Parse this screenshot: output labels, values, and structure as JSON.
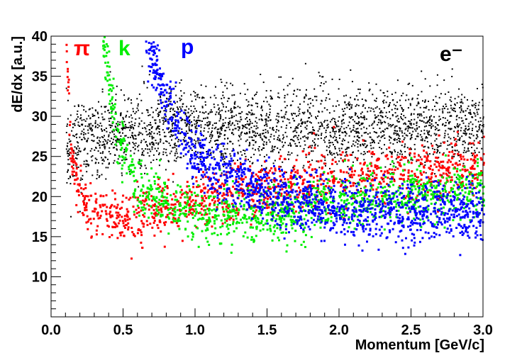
{
  "chart_data": {
    "type": "scatter",
    "title": "",
    "xlabel": "Momentum [GeV/c]",
    "ylabel": "dE/dx [a.u.]",
    "xlim": [
      0.0,
      3.0
    ],
    "ylim": [
      5,
      40
    ],
    "x_ticks": [
      "0.0",
      "0.5",
      "1.0",
      "1.5",
      "2.0",
      "2.5",
      "3.0"
    ],
    "y_ticks": [
      "10",
      "15",
      "20",
      "25",
      "30",
      "35",
      "40"
    ],
    "grid": false,
    "series": [
      {
        "name": "e⁻",
        "color": "#000000",
        "trend": [
          {
            "p": 0.1,
            "dedx": 26.5
          },
          {
            "p": 0.5,
            "dedx": 28.0
          },
          {
            "p": 1.0,
            "dedx": 28.5
          },
          {
            "p": 2.0,
            "dedx": 28.5
          },
          {
            "p": 3.0,
            "dedx": 28.5
          }
        ]
      },
      {
        "name": "π",
        "color": "#ff0000",
        "trend": [
          {
            "p": 0.1,
            "dedx": 40.0
          },
          {
            "p": 0.13,
            "dedx": 25.0
          },
          {
            "p": 0.25,
            "dedx": 18.0
          },
          {
            "p": 0.5,
            "dedx": 17.5
          },
          {
            "p": 1.0,
            "dedx": 19.5
          },
          {
            "p": 2.0,
            "dedx": 22.5
          },
          {
            "p": 3.0,
            "dedx": 24.0
          }
        ]
      },
      {
        "name": "k",
        "color": "#00ee00",
        "trend": [
          {
            "p": 0.35,
            "dedx": 40.0
          },
          {
            "p": 0.45,
            "dedx": 28.0
          },
          {
            "p": 0.6,
            "dedx": 21.0
          },
          {
            "p": 1.0,
            "dedx": 18.0
          },
          {
            "p": 1.5,
            "dedx": 17.5
          },
          {
            "p": 2.0,
            "dedx": 19.5
          },
          {
            "p": 3.0,
            "dedx": 21.0
          }
        ]
      },
      {
        "name": "p",
        "color": "#0000ff",
        "trend": [
          {
            "p": 0.65,
            "dedx": 40.0
          },
          {
            "p": 0.8,
            "dedx": 32.0
          },
          {
            "p": 1.0,
            "dedx": 25.0
          },
          {
            "p": 1.5,
            "dedx": 20.0
          },
          {
            "p": 2.0,
            "dedx": 18.5
          },
          {
            "p": 3.0,
            "dedx": 18.0
          }
        ]
      }
    ]
  }
}
